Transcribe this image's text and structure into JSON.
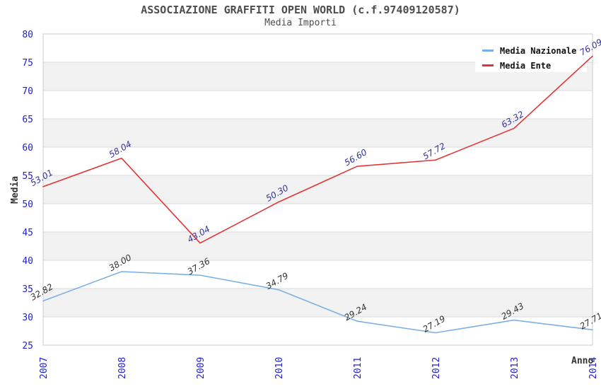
{
  "chart_data": {
    "type": "line",
    "title": "ASSOCIAZIONE GRAFFITI OPEN WORLD (c.f.97409120587)",
    "subtitle": "Media Importi",
    "xlabel": "Anno",
    "ylabel": "Media",
    "categories": [
      "2007",
      "2008",
      "2009",
      "2010",
      "2011",
      "2012",
      "2013",
      "2014"
    ],
    "ylim": [
      25,
      80
    ],
    "ytick_step": 5,
    "yticks": [
      25,
      30,
      35,
      40,
      45,
      50,
      55,
      60,
      65,
      70,
      75,
      80
    ],
    "grid": "horizontal gridlines with alternating white/gray bands",
    "legend_position": "top-right",
    "series": [
      {
        "name": "Media Nazionale",
        "color": "#7cb0e2",
        "label_color": "#333333",
        "values": [
          32.82,
          38.0,
          37.36,
          34.79,
          29.24,
          27.19,
          29.43,
          27.71
        ]
      },
      {
        "name": "Media Ente",
        "color": "#e33434",
        "label_color": "#333399",
        "values": [
          53.01,
          58.04,
          43.04,
          50.3,
          56.6,
          57.72,
          63.32,
          76.09
        ]
      }
    ],
    "colors": {
      "tick_labels": "#2222cc",
      "band_fill": "#f2f2f2",
      "gridline": "#d9d9d9",
      "plot_border": "#cccccc",
      "legend_background": "#ffffff",
      "title_text": "#4d4d4d",
      "axis_title_text": "#333333"
    }
  }
}
